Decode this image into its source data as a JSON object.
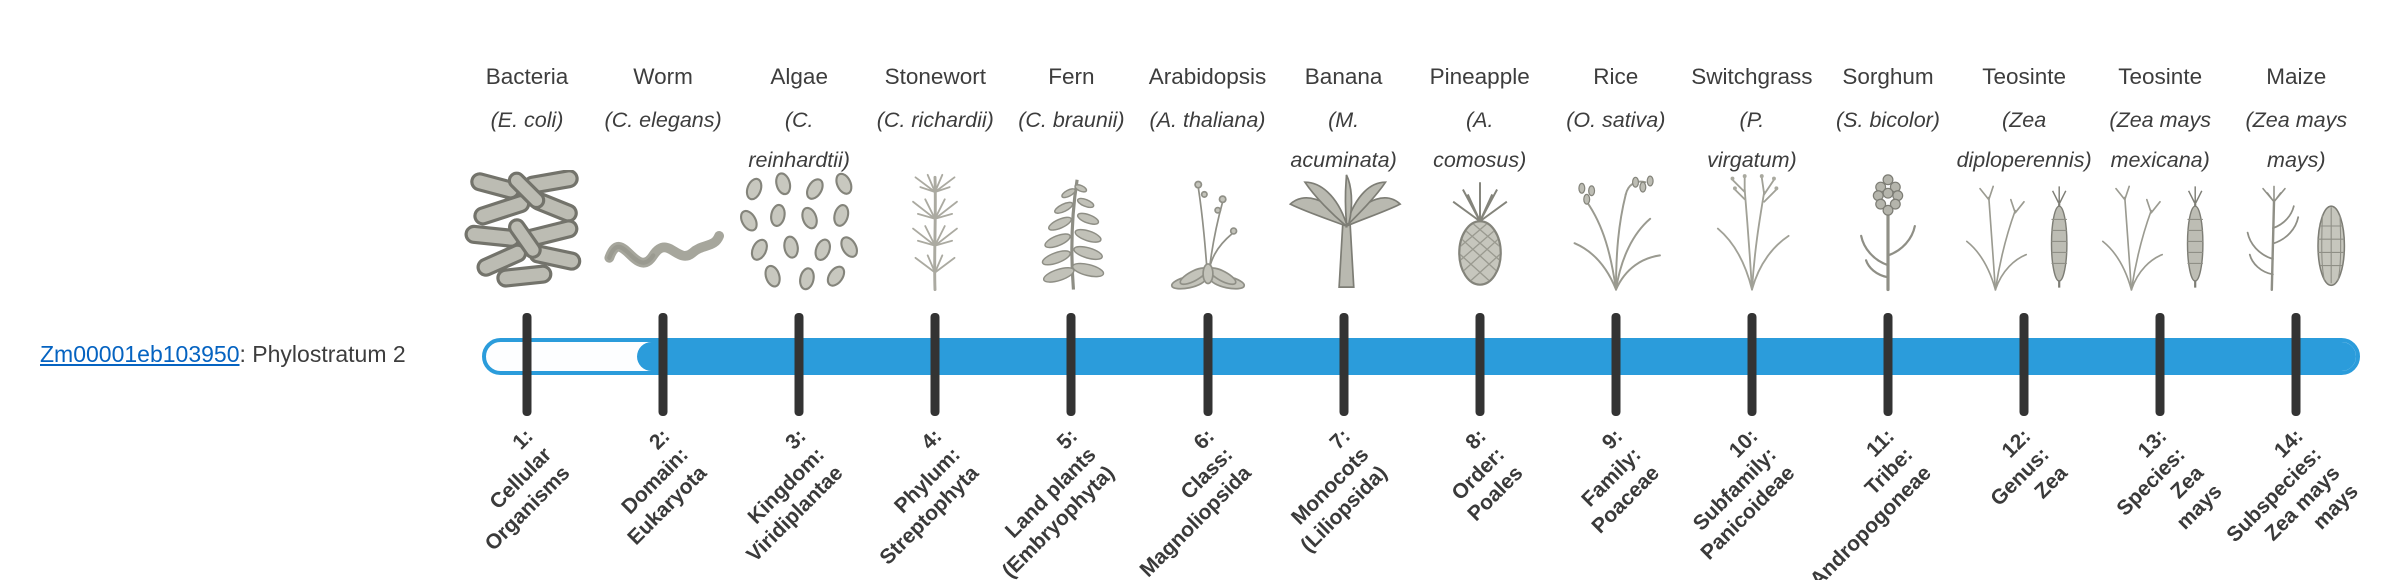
{
  "gene": {
    "id": "Zm00001eb103950",
    "suffix": ": Phylostratum 2",
    "phylostratum": 2
  },
  "colors": {
    "bar_blue": "#2B9CDB",
    "tick": "#333333",
    "text": "#3D3D3D",
    "link": "#0563C1"
  },
  "phylostrata": [
    {
      "index": 1,
      "organism": "Bacteria",
      "sci_lines": [
        "(E. coli)"
      ],
      "icon": "bacteria-icon",
      "label_lines": [
        "1:",
        "Cellular",
        "Organisms"
      ],
      "filled": false
    },
    {
      "index": 2,
      "organism": "Worm",
      "sci_lines": [
        "(C. elegans)"
      ],
      "icon": "worm-icon",
      "label_lines": [
        "2:",
        "Domain:",
        "Eukaryota"
      ],
      "filled": true
    },
    {
      "index": 3,
      "organism": "Algae",
      "sci_lines": [
        "(C.",
        "reinhardtii)"
      ],
      "icon": "algae-icon",
      "label_lines": [
        "3:",
        "Kingdom:",
        "Viridiplantae"
      ],
      "filled": true
    },
    {
      "index": 4,
      "organism": "Stonewort",
      "sci_lines": [
        "(C. richardii)"
      ],
      "icon": "stonewort-icon",
      "label_lines": [
        "4:",
        "Phylum:",
        "Streptophyta"
      ],
      "filled": true
    },
    {
      "index": 5,
      "organism": "Fern",
      "sci_lines": [
        "(C. braunii)"
      ],
      "icon": "fern-icon",
      "label_lines": [
        "5:",
        "Land plants",
        "(Embryophyta)"
      ],
      "filled": true
    },
    {
      "index": 6,
      "organism": "Arabidopsis",
      "sci_lines": [
        "(A. thaliana)"
      ],
      "icon": "arabidopsis-icon",
      "label_lines": [
        "6:",
        "Class:",
        "Magnoliopsida"
      ],
      "filled": true
    },
    {
      "index": 7,
      "organism": "Banana",
      "sci_lines": [
        "(M.",
        "acuminata)"
      ],
      "icon": "banana-icon",
      "label_lines": [
        "7:",
        "Monocots",
        "(Liliopsida)"
      ],
      "filled": true
    },
    {
      "index": 8,
      "organism": "Pineapple",
      "sci_lines": [
        "(A.",
        "comosus)"
      ],
      "icon": "pineapple-icon",
      "label_lines": [
        "8:",
        "Order:",
        "Poales"
      ],
      "filled": true
    },
    {
      "index": 9,
      "organism": "Rice",
      "sci_lines": [
        "(O. sativa)"
      ],
      "icon": "rice-icon",
      "label_lines": [
        "9:",
        "Family:",
        "Poaceae"
      ],
      "filled": true
    },
    {
      "index": 10,
      "organism": "Switchgrass",
      "sci_lines": [
        "(P.",
        "virgatum)"
      ],
      "icon": "switchgrass-icon",
      "label_lines": [
        "10:",
        "Subfamily:",
        "Panicoideae"
      ],
      "filled": true
    },
    {
      "index": 11,
      "organism": "Sorghum",
      "sci_lines": [
        "(S. bicolor)"
      ],
      "icon": "sorghum-icon",
      "label_lines": [
        "11:",
        "Tribe:",
        "Andropogoneae"
      ],
      "filled": true
    },
    {
      "index": 12,
      "organism": "Teosinte",
      "sci_lines": [
        "(Zea",
        "diploperennis)"
      ],
      "icon": "teosinte-diploperennis-icon",
      "label_lines": [
        "12:",
        "Genus:",
        "Zea"
      ],
      "filled": true
    },
    {
      "index": 13,
      "organism": "Teosinte",
      "sci_lines": [
        "(Zea mays",
        "mexicana)"
      ],
      "icon": "teosinte-mexicana-icon",
      "label_lines": [
        "13:",
        "Species:",
        "Zea",
        "mays"
      ],
      "filled": true
    },
    {
      "index": 14,
      "organism": "Maize",
      "sci_lines": [
        "(Zea mays",
        "mays)"
      ],
      "icon": "maize-icon",
      "label_lines": [
        "14:",
        "Subspecies:",
        "Zea mays",
        "mays"
      ],
      "filled": true
    }
  ],
  "chart_data": {
    "type": "bar",
    "orientation": "horizontal",
    "gene": "Zm00001eb103950",
    "phylostratum": 2,
    "bar_extent": [
      2,
      14
    ],
    "values": [
      0,
      1,
      1,
      1,
      1,
      1,
      1,
      1,
      1,
      1,
      1,
      1,
      1,
      1
    ],
    "categories": [
      "1: Cellular Organisms",
      "2: Domain: Eukaryota",
      "3: Kingdom: Viridiplantae",
      "4: Phylum: Streptophyta",
      "5: Land plants (Embryophyta)",
      "6: Class: Magnoliopsida",
      "7: Monocots (Liliopsida)",
      "8: Order: Poales",
      "9: Family: Poaceae",
      "10: Subfamily: Panicoideae",
      "11: Tribe: Andropogoneae",
      "12: Genus: Zea",
      "13: Species: Zea mays",
      "14: Subspecies: Zea mays mays"
    ],
    "organisms": [
      "Bacteria (E. coli)",
      "Worm (C. elegans)",
      "Algae (C. reinhardtii)",
      "Stonewort (C. richardii)",
      "Fern (C. braunii)",
      "Arabidopsis (A. thaliana)",
      "Banana (M. acuminata)",
      "Pineapple (A. comosus)",
      "Rice (O. sativa)",
      "Switchgrass (P. virgatum)",
      "Sorghum (S. bicolor)",
      "Teosinte (Zea diploperennis)",
      "Teosinte (Zea mays mexicana)",
      "Maize (Zea mays mays)"
    ],
    "legend": "off",
    "grid": "off"
  }
}
